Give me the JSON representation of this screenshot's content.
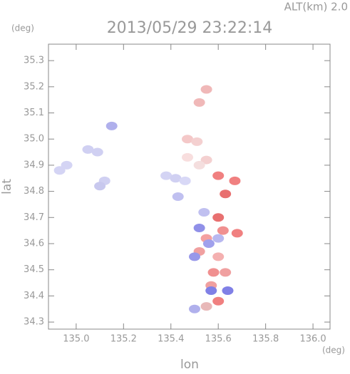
{
  "chart_data": {
    "type": "scatter",
    "title": "2013/05/29 23:22:14",
    "subtitle": "ALT(km) 2.0",
    "x_label": "lon",
    "y_label": "lat",
    "x_unit": "(deg)",
    "y_unit": "(deg)",
    "xlim": [
      134.883,
      136.072
    ],
    "ylim": [
      34.273,
      35.363
    ],
    "xticks": [
      {
        "value": 135.0,
        "label": "135.0"
      },
      135.2,
      135.4,
      135.6,
      135.8,
      {
        "value": 136.0,
        "label": "136.0"
      }
    ],
    "yticks": [
      34.3,
      34.4,
      34.5,
      34.6,
      34.7,
      34.8,
      34.9,
      {
        "value": 35.0,
        "label": "35.0"
      },
      35.1,
      35.2,
      35.3
    ],
    "x": [
      134.93,
      134.96,
      135.05,
      135.09,
      135.12,
      135.1,
      135.15,
      135.38,
      135.42,
      135.46,
      135.43,
      135.55,
      135.52,
      135.47,
      135.51,
      135.47,
      135.55,
      135.52,
      135.6,
      135.63,
      135.67,
      135.6,
      135.62,
      135.68,
      135.55,
      135.52,
      135.6,
      135.58,
      135.63,
      135.57,
      135.6,
      135.55,
      135.52,
      135.56,
      135.5,
      135.57,
      135.64,
      135.5,
      135.6,
      135.54
    ],
    "values": [
      34.88,
      34.9,
      34.96,
      34.95,
      34.84,
      34.82,
      35.05,
      34.86,
      34.85,
      34.84,
      34.78,
      35.19,
      35.14,
      35.0,
      34.99,
      34.93,
      34.92,
      34.9,
      34.86,
      34.79,
      34.84,
      34.7,
      34.65,
      34.64,
      34.62,
      34.57,
      34.55,
      34.49,
      34.49,
      34.44,
      34.38,
      34.36,
      34.66,
      34.6,
      34.55,
      34.42,
      34.42,
      34.35,
      34.62,
      34.72
    ],
    "point_colors": [
      "#d4d4f4",
      "#d4d4f4",
      "#d0d0f2",
      "#d0d0f2",
      "#d0d0f2",
      "#c8c8ee",
      "#b0b0ec",
      "#d4d4f4",
      "#d0d0f2",
      "#d8d8f6",
      "#c0c0f0",
      "#f0b8b8",
      "#f0b8b8",
      "#f4c8c8",
      "#f4d0d0",
      "#f8dede",
      "#f4d0d0",
      "#f4dede",
      "#f08080",
      "#e87070",
      "#f08080",
      "#e87070",
      "#f09090",
      "#f08080",
      "#f4a0a0",
      "#f0a0a0",
      "#f4b0b0",
      "#f09090",
      "#f0a0a0",
      "#f0a0a0",
      "#f08080",
      "#e8b8b8",
      "#9090e8",
      "#a0a0ec",
      "#9898ea",
      "#8080e6",
      "#8080e6",
      "#b0b0ec",
      "#b8b8f0",
      "#c0c0f0"
    ]
  }
}
